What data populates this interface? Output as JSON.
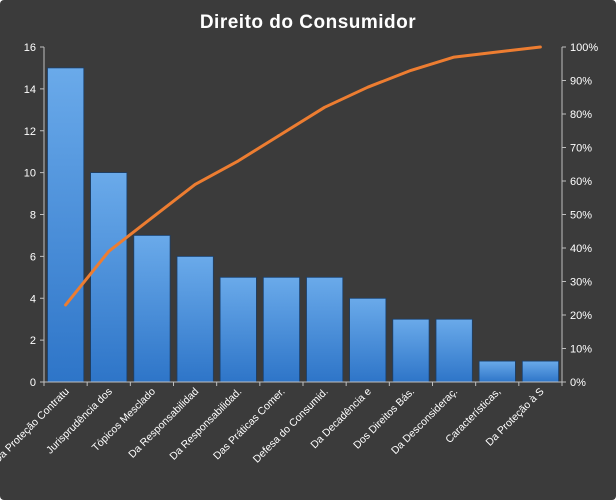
{
  "chart_data": {
    "type": "bar",
    "title": "Direito  do Consumidor",
    "categories": [
      "Da Proteção Contratu",
      "Jurisprudência dos",
      "Tópicos Mesclado",
      "Da Responsabilidad",
      "Da Responsabilidad.",
      "Das Práticas Comer.",
      "Defesa do Consumid.",
      "Da Decadência e",
      "Dos Direitos Bás.",
      "Da Desconsideraç.",
      "Características,",
      "Da Proteção à S"
    ],
    "values": [
      15,
      10,
      7,
      6,
      5,
      5,
      5,
      4,
      3,
      3,
      1,
      1
    ],
    "cumulative_percent": [
      23,
      39,
      49,
      59,
      66,
      74,
      82,
      88,
      93,
      97,
      98.5,
      100
    ],
    "ylim": [
      0,
      16
    ],
    "yticks": [
      "0",
      "2",
      "4",
      "6",
      "8",
      "10",
      "12",
      "14",
      "16"
    ],
    "y2lim": [
      0,
      100
    ],
    "y2ticks": [
      "0%",
      "10%",
      "20%",
      "30%",
      "40%",
      "50%",
      "60%",
      "70%",
      "80%",
      "90%",
      "100%"
    ],
    "grid": false,
    "legend": "none",
    "colors": {
      "background": "#3b3b3b",
      "bar_top": "#6aaaea",
      "bar_bottom": "#2e75c8",
      "bar_edge": "#1a3f6b",
      "line": "#ed7d31",
      "axis": "#bfbfbf",
      "text": "#ffffff"
    }
  }
}
